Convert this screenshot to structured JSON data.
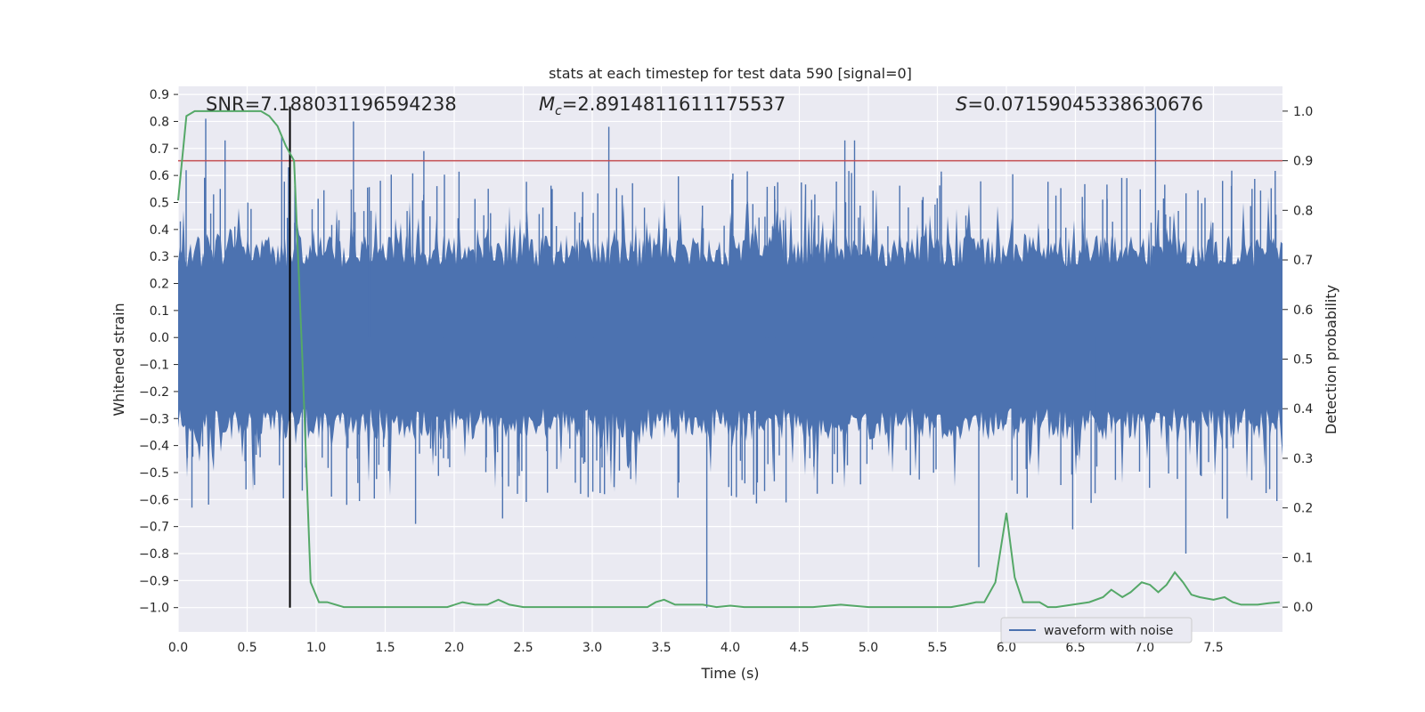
{
  "chart_data": {
    "type": "line",
    "title": "stats at each timestep for test data 590 [signal=0]",
    "xlabel": "Time (s)",
    "ylabel_left": "Whitened strain",
    "ylabel_right": "Detection probability",
    "xlim": [
      0.0,
      8.0
    ],
    "ylim_left": [
      -1.09,
      0.93
    ],
    "ylim_right": [
      -0.05,
      1.05
    ],
    "x_ticks": [
      "0.0",
      "0.5",
      "1.0",
      "1.5",
      "2.0",
      "2.5",
      "3.0",
      "3.5",
      "4.0",
      "4.5",
      "5.0",
      "5.5",
      "6.0",
      "6.5",
      "7.0",
      "7.5"
    ],
    "x_tick_values": [
      0.0,
      0.5,
      1.0,
      1.5,
      2.0,
      2.5,
      3.0,
      3.5,
      4.0,
      4.5,
      5.0,
      5.5,
      6.0,
      6.5,
      7.0,
      7.5
    ],
    "y_left_ticks": [
      "0.9",
      "0.8",
      "0.7",
      "0.6",
      "0.5",
      "0.4",
      "0.3",
      "0.2",
      "0.1",
      "0.0",
      "−0.1",
      "−0.2",
      "−0.3",
      "−0.4",
      "−0.5",
      "−0.6",
      "−0.7",
      "−0.8",
      "−0.9",
      "−1.0"
    ],
    "y_left_tick_values": [
      0.9,
      0.8,
      0.7,
      0.6,
      0.5,
      0.4,
      0.3,
      0.2,
      0.1,
      0.0,
      -0.1,
      -0.2,
      -0.3,
      -0.4,
      -0.5,
      -0.6,
      -0.7,
      -0.8,
      -0.9,
      -1.0
    ],
    "y_right_ticks": [
      "1.0",
      "0.9",
      "0.8",
      "0.7",
      "0.6",
      "0.5",
      "0.4",
      "0.3",
      "0.2",
      "0.1",
      "0.0"
    ],
    "y_right_tick_values": [
      1.0,
      0.9,
      0.8,
      0.7,
      0.6,
      0.5,
      0.4,
      0.3,
      0.2,
      0.1,
      0.0
    ],
    "annotations": {
      "snr": "SNR=7.188031196594238",
      "mc_symbol": "M",
      "mc_sub": "c",
      "mc_value": "=2.8914811611175537",
      "s_symbol": "S",
      "s_value": "=0.07159045338630676"
    },
    "threshold_probability": 0.9,
    "marker_time": 0.81,
    "legend": [
      {
        "label": "waveform with noise",
        "color": "#4c72b0"
      }
    ],
    "legend_position": "lower-right",
    "series": [
      {
        "name": "waveform with noise",
        "axis": "left",
        "color": "#4c72b0",
        "style": "dense noise, bulk about ±0.3, peaks up to about 0.85 and down to about −1.0",
        "envelope_points": [
          [
            0.2,
            0.81
          ],
          [
            0.34,
            0.73
          ],
          [
            0.75,
            0.75
          ],
          [
            0.8,
            0.63
          ],
          [
            1.27,
            0.8
          ],
          [
            1.78,
            0.69
          ],
          [
            3.12,
            0.78
          ],
          [
            4.83,
            0.73
          ],
          [
            4.9,
            0.73
          ],
          [
            7.08,
            0.85
          ],
          [
            0.1,
            -0.63
          ],
          [
            1.72,
            -0.69
          ],
          [
            2.35,
            -0.67
          ],
          [
            3.83,
            -1.0
          ],
          [
            5.8,
            -0.85
          ],
          [
            6.48,
            -0.71
          ],
          [
            7.3,
            -0.8
          ],
          [
            7.6,
            -0.67
          ]
        ]
      },
      {
        "name": "detection probability",
        "axis": "right",
        "color": "#55a868",
        "x": [
          0.0,
          0.06,
          0.12,
          0.18,
          0.24,
          0.3,
          0.36,
          0.42,
          0.48,
          0.54,
          0.6,
          0.66,
          0.72,
          0.78,
          0.84,
          0.9,
          0.96,
          1.02,
          1.08,
          1.2,
          1.4,
          1.6,
          1.8,
          1.95,
          2.06,
          2.15,
          2.24,
          2.32,
          2.4,
          2.5,
          2.7,
          3.0,
          3.2,
          3.4,
          3.46,
          3.52,
          3.6,
          3.7,
          3.8,
          3.9,
          4.0,
          4.1,
          4.2,
          4.4,
          4.6,
          4.8,
          5.0,
          5.2,
          5.4,
          5.6,
          5.7,
          5.78,
          5.84,
          5.92,
          6.0,
          6.06,
          6.12,
          6.18,
          6.24,
          6.3,
          6.36,
          6.48,
          6.6,
          6.7,
          6.76,
          6.84,
          6.9,
          6.98,
          7.04,
          7.1,
          7.16,
          7.22,
          7.28,
          7.34,
          7.4,
          7.5,
          7.58,
          7.64,
          7.7,
          7.76,
          7.82,
          7.9,
          7.98
        ],
        "y": [
          0.82,
          0.99,
          1.0,
          1.0,
          1.0,
          1.0,
          1.0,
          1.0,
          1.0,
          1.0,
          1.0,
          0.99,
          0.97,
          0.93,
          0.9,
          0.5,
          0.05,
          0.01,
          0.01,
          0.0,
          0.0,
          0.0,
          0.0,
          0.0,
          0.01,
          0.005,
          0.005,
          0.015,
          0.005,
          0.0,
          0.0,
          0.0,
          0.0,
          0.0,
          0.01,
          0.015,
          0.005,
          0.005,
          0.005,
          0.0,
          0.003,
          0.0,
          0.0,
          0.0,
          0.0,
          0.005,
          0.0,
          0.0,
          0.0,
          0.0,
          0.005,
          0.01,
          0.01,
          0.05,
          0.19,
          0.06,
          0.01,
          0.01,
          0.01,
          0.0,
          0.0,
          0.005,
          0.01,
          0.02,
          0.035,
          0.02,
          0.03,
          0.05,
          0.045,
          0.03,
          0.045,
          0.07,
          0.05,
          0.025,
          0.02,
          0.015,
          0.02,
          0.01,
          0.005,
          0.005,
          0.005,
          0.008,
          0.01
        ]
      }
    ]
  }
}
